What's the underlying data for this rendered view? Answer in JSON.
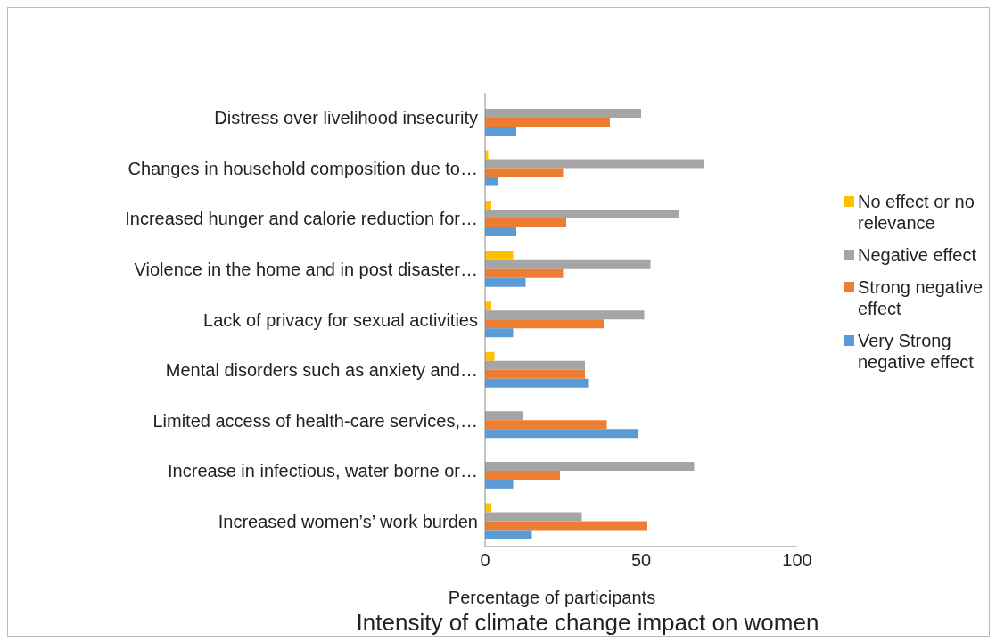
{
  "chart_data": {
    "type": "bar",
    "orientation": "horizontal",
    "title": "Intensity of climate change impact on women",
    "xlabel": "Percentage of participants",
    "categories": [
      "Distress over livelihood insecurity",
      "Changes in household composition due to…",
      "Increased hunger and calorie reduction for…",
      "Violence in the home and in post disaster…",
      "Lack of privacy for sexual activities",
      "Mental disorders such as anxiety and…",
      "Limited access of health-care services,…",
      "Increase in infectious, water borne or…",
      "Increased women’s’ work burden"
    ],
    "series": [
      {
        "name": "No effect or no relevance",
        "color": "#ffc000",
        "values": [
          0,
          1,
          2,
          9,
          2,
          3,
          0,
          0,
          2
        ]
      },
      {
        "name": "Negative effect",
        "color": "#a5a5a5",
        "values": [
          50,
          70,
          62,
          53,
          51,
          32,
          12,
          67,
          31
        ]
      },
      {
        "name": "Strong negative effect",
        "color": "#ed7d31",
        "values": [
          40,
          25,
          26,
          25,
          38,
          32,
          39,
          24,
          52
        ]
      },
      {
        "name": "Very Strong negative effect",
        "color": "#5b9bd5",
        "values": [
          10,
          4,
          10,
          13,
          9,
          33,
          49,
          9,
          15
        ]
      }
    ],
    "xlim": [
      0,
      100
    ],
    "xticks": [
      0,
      50,
      100
    ],
    "legend": "right"
  }
}
